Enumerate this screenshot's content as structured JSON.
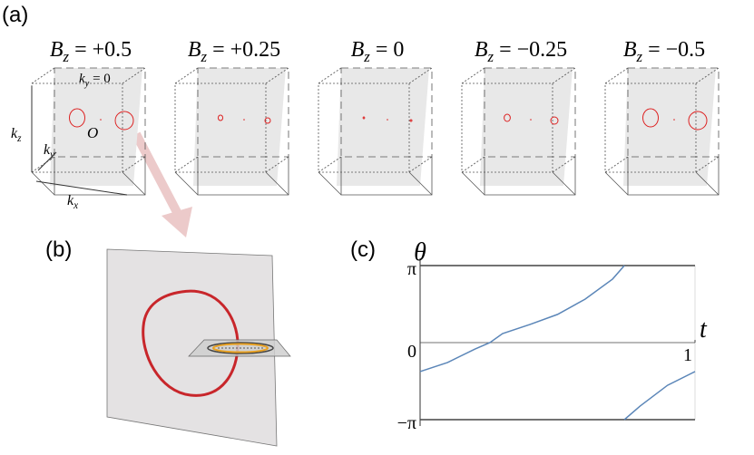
{
  "panels": {
    "a": {
      "label": "(a)",
      "columns": [
        {
          "symbol": "B",
          "sub": "z",
          "rest": " = +0.5"
        },
        {
          "symbol": "B",
          "sub": "z",
          "rest": " = +0.25"
        },
        {
          "symbol": "B",
          "sub": "z",
          "rest": " = 0"
        },
        {
          "symbol": "B",
          "sub": "z",
          "rest": " = −0.25"
        },
        {
          "symbol": "B",
          "sub": "z",
          "rest": " = −0.5"
        }
      ],
      "plane_label": {
        "symbol": "k",
        "sub": "y",
        "rest": " = 0"
      },
      "axes": {
        "kz": {
          "symbol": "k",
          "sub": "z"
        },
        "ky": {
          "symbol": "k",
          "sub": "y"
        },
        "kx": {
          "symbol": "k",
          "sub": "x"
        },
        "origin": "O"
      }
    },
    "b": {
      "label": "(b)"
    },
    "c": {
      "label": "(c)"
    }
  },
  "chart_data": {
    "type": "line",
    "y_label": "θ",
    "x_label": "t",
    "origin_label": "0",
    "x": [
      0,
      0.1,
      0.2,
      0.254,
      0.3,
      0.4,
      0.5,
      0.6,
      0.7,
      0.743,
      0.743,
      0.743,
      0.8,
      0.9,
      1
    ],
    "series": [
      {
        "color": "#5b86b8",
        "values": [
          -1.18,
          -0.81,
          -0.26,
          0,
          0.37,
          0.74,
          1.15,
          1.77,
          2.59,
          3.1416,
          null,
          -3.1416,
          -2.59,
          -1.74,
          -1.18
        ]
      }
    ],
    "xlim": [
      0,
      1
    ],
    "xticks": [
      1
    ],
    "ylim": [
      -3.1416,
      3.1416
    ],
    "yticks": [
      {
        "value": -3.1416,
        "label": "−π"
      },
      {
        "value": 0,
        "label": "0"
      },
      {
        "value": 3.1416,
        "label": "π"
      }
    ]
  }
}
